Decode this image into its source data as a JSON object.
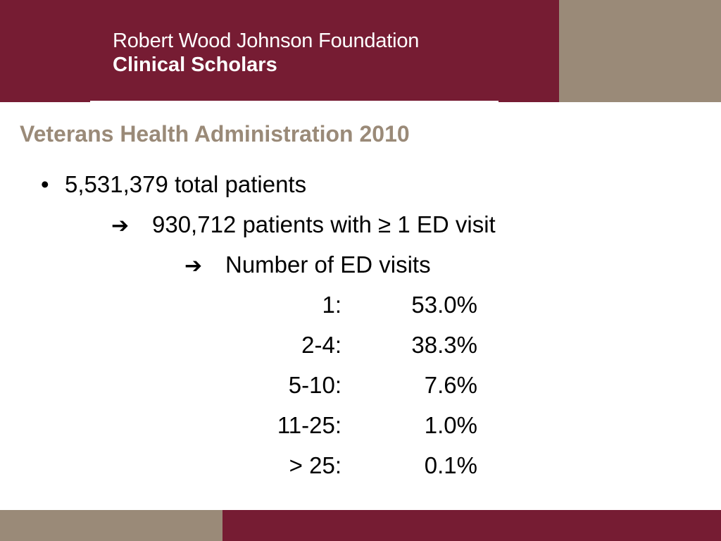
{
  "header": {
    "org_name": "Robert Wood Johnson Foundation",
    "program_name": "Clinical Scholars"
  },
  "slide": {
    "title": "Veterans Health Administration 2010",
    "bullet_symbol": "•",
    "total_patients": "5,531,379 total patients",
    "arrow_symbol": "",
    "ed_patients": "930,712 patients with ≥ 1 ED visit",
    "visits_heading": "Number of ED visits"
  },
  "visit_distribution": [
    {
      "range": "1:",
      "percent": "53.0%"
    },
    {
      "range": "2-4:",
      "percent": "38.3%"
    },
    {
      "range": "5-10:",
      "percent": "7.6%"
    },
    {
      "range": "11-25:",
      "percent": "1.0%"
    },
    {
      "range": "> 25:",
      "percent": "0.1%"
    }
  ],
  "colors": {
    "maroon": "#761c33",
    "tan": "#9a8a78",
    "text": "#000000"
  }
}
